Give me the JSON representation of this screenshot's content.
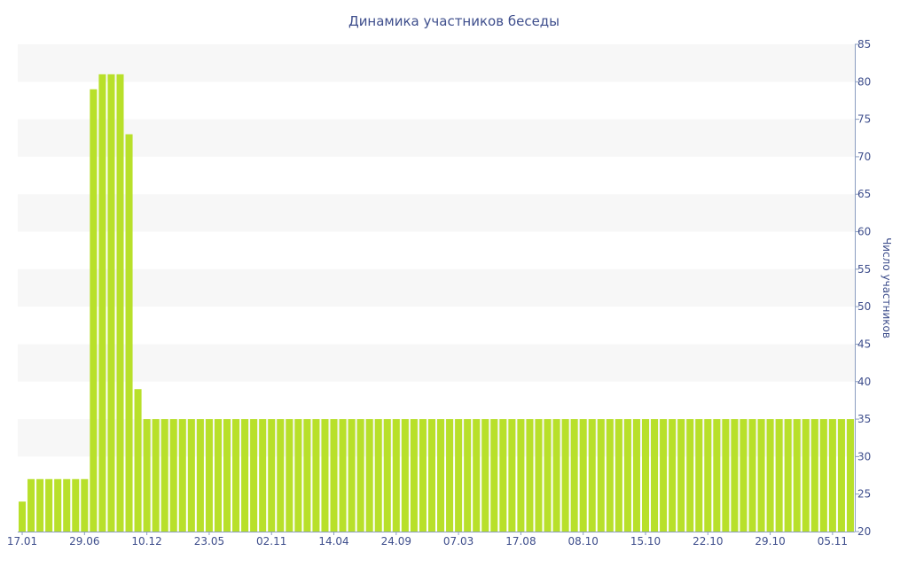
{
  "chart_data": {
    "type": "bar",
    "title": "Динамика участников беседы",
    "xlabel": "",
    "ylabel": "Число участников",
    "ylim": [
      20,
      85
    ],
    "y_ticks": [
      20,
      25,
      30,
      35,
      40,
      45,
      50,
      55,
      60,
      65,
      70,
      75,
      80,
      85
    ],
    "y_axis_side": "right",
    "grid": "alternating horizontal bands",
    "legend": "none",
    "bar_color": "#b8e02a",
    "band_color": "#f7f7f7",
    "text_color": "#3e4e8c",
    "x_tick_labels": [
      "17.01",
      "29.06",
      "10.12",
      "23.05",
      "02.11",
      "14.04",
      "24.09",
      "07.03",
      "17.08",
      "08.10",
      "15.10",
      "22.10",
      "29.10",
      "05.11"
    ],
    "x_tick_bar_index": [
      0,
      7,
      14,
      21,
      28,
      35,
      42,
      49,
      56,
      63,
      70,
      77,
      84,
      91
    ],
    "values": [
      24,
      27,
      27,
      27,
      27,
      27,
      27,
      27,
      79,
      81,
      81,
      81,
      73,
      39,
      35,
      35,
      35,
      35,
      35,
      35,
      35,
      35,
      35,
      35,
      35,
      35,
      35,
      35,
      35,
      35,
      35,
      35,
      35,
      35,
      35,
      35,
      35,
      35,
      35,
      35,
      35,
      35,
      35,
      35,
      35,
      35,
      35,
      35,
      35,
      35,
      35,
      35,
      35,
      35,
      35,
      35,
      35,
      35,
      35,
      35,
      35,
      35,
      35,
      35,
      35,
      35,
      35,
      35,
      35,
      35,
      35,
      35,
      35,
      35,
      35,
      35,
      35,
      35,
      35,
      35,
      35,
      35,
      35,
      35,
      35,
      35,
      35,
      35,
      35,
      35,
      35,
      35,
      35,
      35
    ]
  }
}
